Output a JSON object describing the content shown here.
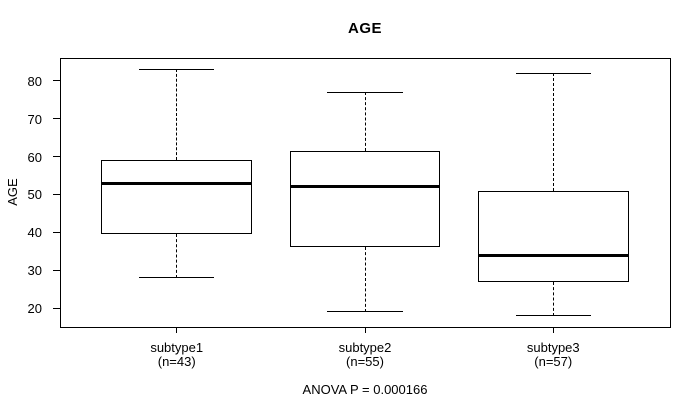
{
  "title": "AGE",
  "footer": "ANOVA P = 0.000166",
  "colors": {
    "line": "#000000",
    "background": "#ffffff",
    "box_fill": "#ffffff"
  },
  "chart_data": {
    "type": "boxplot",
    "title": "AGE",
    "ylabel": "AGE",
    "xlabel": "",
    "yticks": [
      20,
      30,
      40,
      50,
      60,
      70,
      80
    ],
    "ylim": [
      15,
      86
    ],
    "grid": false,
    "legend": "none",
    "annotation": "ANOVA P = 0.000166",
    "categories": [
      "subtype1",
      "subtype2",
      "subtype3"
    ],
    "groups": [
      {
        "label": "subtype1",
        "sublabel": "(n=43)",
        "n": 43,
        "whisker_low": 28,
        "q1": 39.5,
        "median": 53,
        "q3": 59,
        "whisker_high": 83
      },
      {
        "label": "subtype2",
        "sublabel": "(n=55)",
        "n": 55,
        "whisker_low": 19,
        "q1": 36,
        "median": 52,
        "q3": 61.5,
        "whisker_high": 77
      },
      {
        "label": "subtype3",
        "sublabel": "(n=57)",
        "n": 57,
        "whisker_low": 18,
        "q1": 27,
        "median": 34,
        "q3": 51,
        "whisker_high": 82
      }
    ]
  }
}
